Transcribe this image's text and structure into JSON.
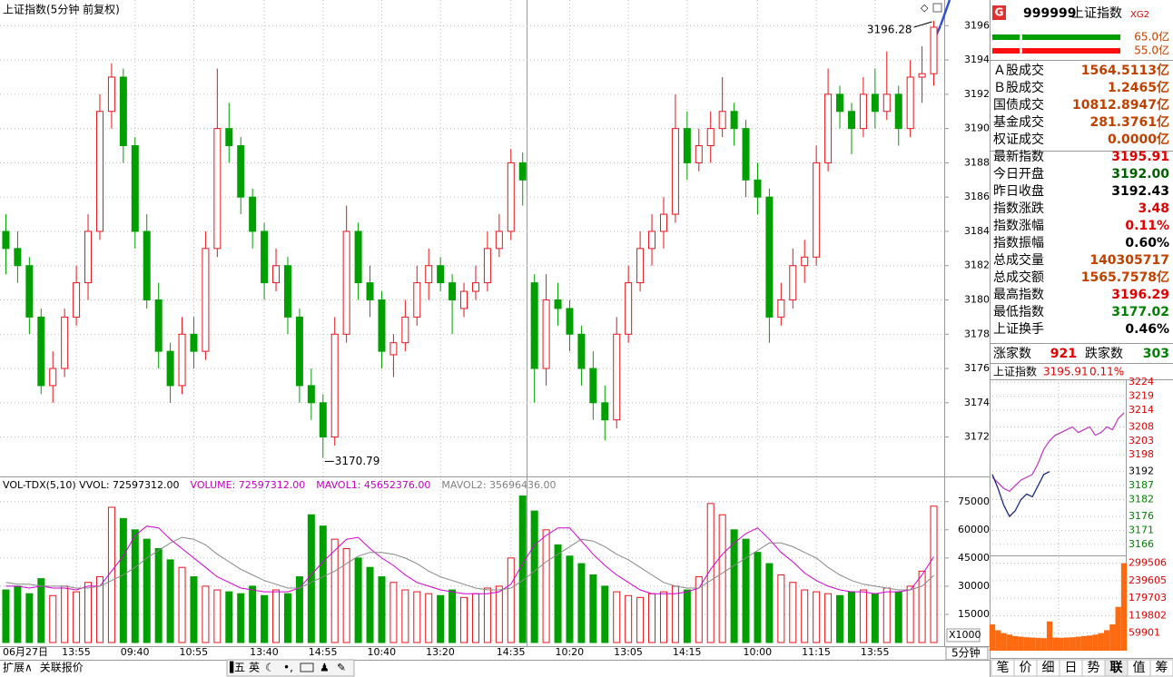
{
  "chart_data": [
    {
      "type": "candlestick",
      "title": "上证指数(5分钟 前复权)",
      "up_color": "#e8141c",
      "down_color": "#00a000",
      "ylim": [
        3169.7,
        3197.5
      ],
      "yticks": [
        3172,
        3174,
        3176,
        3178,
        3180,
        3182,
        3184,
        3186,
        3188,
        3190,
        3192,
        3194,
        3196
      ],
      "grid": true,
      "categories": [
        "06月27日",
        null,
        null,
        null,
        null,
        null,
        "13:55",
        null,
        null,
        null,
        null,
        "09:40",
        null,
        null,
        null,
        null,
        "10:55",
        null,
        null,
        null,
        null,
        null,
        "13:40",
        null,
        null,
        null,
        null,
        "14:55",
        null,
        null,
        null,
        null,
        "10:40",
        null,
        null,
        null,
        null,
        "13:20",
        null,
        null,
        null,
        null,
        null,
        "14:35",
        null,
        null,
        null,
        null,
        "10:20",
        null,
        null,
        null,
        null,
        "13:05",
        null,
        null,
        null,
        null,
        "14:15",
        null,
        null,
        null,
        null,
        null,
        "10:00",
        null,
        null,
        null,
        null,
        "11:15",
        null,
        null,
        null,
        null,
        "13:55",
        null,
        null,
        null,
        null,
        null
      ],
      "candles": [
        [
          3184,
          3185,
          3181.5,
          3183
        ],
        [
          3183,
          3184,
          3181,
          3182
        ],
        [
          3182,
          3182.5,
          3178,
          3179
        ],
        [
          3179,
          3179.5,
          3174.5,
          3175
        ],
        [
          3175,
          3177,
          3174,
          3176
        ],
        [
          3176,
          3179.5,
          3175.5,
          3179
        ],
        [
          3179,
          3182,
          3178.5,
          3181
        ],
        [
          3181,
          3185,
          3180,
          3184
        ],
        [
          3184,
          3192,
          3183.5,
          3191
        ],
        [
          3191,
          3193.8,
          3190,
          3193
        ],
        [
          3193,
          3193.5,
          3188,
          3189
        ],
        [
          3189,
          3189.5,
          3183,
          3184
        ],
        [
          3184,
          3185,
          3179.5,
          3180
        ],
        [
          3180,
          3181,
          3176,
          3177
        ],
        [
          3177,
          3177.5,
          3174,
          3175
        ],
        [
          3175,
          3179,
          3174.5,
          3178
        ],
        [
          3178,
          3179,
          3176,
          3177
        ],
        [
          3177,
          3184,
          3176.5,
          3183
        ],
        [
          3183,
          3193.5,
          3182.5,
          3190
        ],
        [
          3190,
          3191.5,
          3188,
          3189
        ],
        [
          3189,
          3189.5,
          3185,
          3186
        ],
        [
          3186,
          3186.5,
          3183,
          3184
        ],
        [
          3184,
          3184.5,
          3180,
          3181
        ],
        [
          3181,
          3183,
          3180.5,
          3182
        ],
        [
          3182,
          3182.5,
          3178,
          3179
        ],
        [
          3179,
          3179.5,
          3174,
          3175
        ],
        [
          3175,
          3176,
          3173,
          3174
        ],
        [
          3174,
          3174.5,
          3170.79,
          3172
        ],
        [
          3172,
          3179,
          3171.5,
          3178
        ],
        [
          3178,
          3185.5,
          3177.5,
          3184
        ],
        [
          3184,
          3184.5,
          3180,
          3181
        ],
        [
          3181,
          3182,
          3179,
          3180
        ],
        [
          3180,
          3180.5,
          3176,
          3177
        ],
        [
          3176.8,
          3178,
          3175.5,
          3177.5
        ],
        [
          3177.5,
          3180,
          3177,
          3179
        ],
        [
          3179,
          3182,
          3178.5,
          3181
        ],
        [
          3181,
          3183,
          3180,
          3182
        ],
        [
          3182,
          3182.5,
          3180.5,
          3181
        ],
        [
          3181,
          3181.5,
          3178,
          3180
        ],
        [
          3179.5,
          3181,
          3179,
          3180.5
        ],
        [
          3180.5,
          3182,
          3180,
          3181
        ],
        [
          3181,
          3184,
          3180.5,
          3183
        ],
        [
          3183,
          3185,
          3182.5,
          3184
        ],
        [
          3184,
          3188.8,
          3183.5,
          3188
        ],
        [
          3188,
          3188.6,
          3185.5,
          3187
        ],
        [
          3181,
          3181.5,
          3174,
          3176
        ],
        [
          3176,
          3181.5,
          3175,
          3180
        ],
        [
          3180,
          3181,
          3178.5,
          3179.5
        ],
        [
          3179.5,
          3180,
          3177,
          3178
        ],
        [
          3178,
          3178.5,
          3175,
          3176
        ],
        [
          3176,
          3177,
          3173,
          3174
        ],
        [
          3174,
          3175,
          3171.8,
          3173
        ],
        [
          3173,
          3179,
          3172.5,
          3178
        ],
        [
          3178,
          3182,
          3177.5,
          3181
        ],
        [
          3181,
          3184,
          3180.5,
          3183
        ],
        [
          3183,
          3185,
          3182,
          3184
        ],
        [
          3184,
          3186,
          3183,
          3185
        ],
        [
          3185,
          3192,
          3184.5,
          3190
        ],
        [
          3190,
          3191,
          3187,
          3188
        ],
        [
          3188,
          3190,
          3187.5,
          3189
        ],
        [
          3189,
          3191,
          3188,
          3190
        ],
        [
          3190,
          3193,
          3189.5,
          3191
        ],
        [
          3191,
          3191.5,
          3189,
          3190
        ],
        [
          3190,
          3190.5,
          3186,
          3187
        ],
        [
          3187,
          3188,
          3185,
          3186
        ],
        [
          3186,
          3186.5,
          3177.5,
          3179
        ],
        [
          3179,
          3181,
          3178.5,
          3180
        ],
        [
          3180,
          3183,
          3179.5,
          3182
        ],
        [
          3182,
          3183.5,
          3181,
          3182.5
        ],
        [
          3182.5,
          3189,
          3182,
          3188
        ],
        [
          3188,
          3193.5,
          3187.5,
          3192
        ],
        [
          3192,
          3192.5,
          3190,
          3191
        ],
        [
          3191,
          3191.5,
          3188.5,
          3190
        ],
        [
          3190,
          3193,
          3189.5,
          3192
        ],
        [
          3192,
          3193.5,
          3190,
          3191
        ],
        [
          3191,
          3194.5,
          3190.5,
          3192
        ],
        [
          3192,
          3192.5,
          3189,
          3190
        ],
        [
          3190,
          3194,
          3189.5,
          3193
        ],
        [
          3193,
          3194.8,
          3191.5,
          3193.2
        ],
        [
          3193.2,
          3196.28,
          3192.5,
          3195.91
        ]
      ]
    },
    {
      "type": "bar",
      "header": [
        {
          "text": "VOL-TDX(5,10)  VVOL: 72597312.00",
          "color": "#000000"
        },
        {
          "text": "VOLUME: 72597312.00",
          "color": "#c000c0"
        },
        {
          "text": "MAVOL1: 45652376.00",
          "color": "#c000c0"
        },
        {
          "text": "MAVOL2: 35696436.00",
          "color": "#808080"
        }
      ],
      "unit_label": "X1000",
      "ylim": [
        0,
        86000
      ],
      "yticks": [
        15000,
        30000,
        45000,
        60000,
        75000
      ],
      "values": [
        28000,
        30000,
        26000,
        34000,
        25000,
        30000,
        27000,
        32000,
        35000,
        72000,
        66000,
        60000,
        55000,
        50000,
        44000,
        40000,
        35000,
        30000,
        28000,
        27000,
        26000,
        30000,
        25000,
        28000,
        26000,
        35000,
        68000,
        62000,
        55000,
        50000,
        45000,
        40000,
        35000,
        32000,
        28000,
        27000,
        26000,
        25000,
        28000,
        24000,
        26000,
        29000,
        30000,
        45000,
        78000,
        70000,
        60000,
        52000,
        46000,
        42000,
        36000,
        30000,
        27000,
        25000,
        24000,
        26000,
        27000,
        30000,
        28000,
        35000,
        74000,
        68000,
        60000,
        55000,
        48000,
        42000,
        36000,
        32000,
        28000,
        27000,
        26000,
        25000,
        27000,
        28000,
        26000,
        29000,
        27000,
        30000,
        38000,
        72597
      ],
      "series": [
        {
          "color": "#d000d0",
          "values": [
            30000,
            30000,
            29000,
            30000,
            29000,
            29000,
            28000,
            30000,
            30000,
            38000,
            46000,
            57000,
            62000,
            61000,
            55000,
            50000,
            45000,
            40000,
            35000,
            32000,
            29000,
            28000,
            27000,
            27000,
            27000,
            29000,
            36000,
            43000,
            49000,
            55000,
            56000,
            50000,
            45000,
            41000,
            36000,
            32000,
            30000,
            28000,
            27000,
            26000,
            26000,
            26000,
            27000,
            31000,
            42000,
            52000,
            57000,
            61000,
            61000,
            54000,
            47000,
            41000,
            36000,
            32000,
            28000,
            26000,
            26000,
            26000,
            27000,
            29000,
            39000,
            47000,
            53000,
            58000,
            61000,
            55000,
            48000,
            43000,
            37000,
            33000,
            30000,
            28000,
            27000,
            27000,
            26000,
            27000,
            27000,
            28000,
            36000,
            45652
          ]
        },
        {
          "color": "#888888",
          "values": [
            32000,
            31000,
            31000,
            30000,
            30000,
            30000,
            29000,
            29000,
            30000,
            33000,
            36000,
            40000,
            45000,
            49000,
            53000,
            56000,
            55000,
            52000,
            47000,
            43000,
            39000,
            36000,
            33000,
            31000,
            29000,
            29000,
            32000,
            35000,
            38000,
            42000,
            46000,
            48000,
            48000,
            47000,
            45000,
            42000,
            38000,
            35000,
            33000,
            31000,
            29000,
            28000,
            28000,
            29000,
            33000,
            38000,
            43000,
            47000,
            51000,
            55000,
            54000,
            51000,
            47000,
            44000,
            40000,
            36000,
            32000,
            30000,
            29000,
            29000,
            33000,
            37000,
            41000,
            45000,
            49000,
            53000,
            53000,
            51000,
            48000,
            45000,
            40000,
            36000,
            33000,
            31000,
            30000,
            29000,
            28000,
            28000,
            30000,
            35696
          ]
        }
      ]
    },
    {
      "type": "line",
      "title": "上证指数",
      "last": "3195.91",
      "change": "0.11%",
      "base": 3192.43,
      "ylim": [
        3164,
        3225
      ],
      "yticks": [
        3224,
        3219,
        3214,
        3208,
        3203,
        3198,
        3192,
        3187,
        3182,
        3176,
        3171,
        3166
      ],
      "series": [
        {
          "color": "#c040c0",
          "values": [
            3190,
            3188,
            3186,
            3185,
            3187,
            3189,
            3190,
            3191,
            3195,
            3200,
            3203,
            3205,
            3206,
            3207,
            3208,
            3206,
            3207,
            3208,
            3205,
            3206,
            3208,
            3207,
            3211,
            3213
          ]
        },
        {
          "color": "#1a2a80",
          "values": [
            3191,
            3186,
            3180,
            3176,
            3178,
            3182,
            3184,
            3183,
            3187,
            3191,
            3192,
            null,
            null,
            null,
            null,
            null,
            null,
            null,
            null,
            null,
            null,
            null,
            null,
            null
          ]
        }
      ],
      "volume_color": "#ff6a10",
      "volume_ylim": [
        0,
        320000
      ],
      "volume_yticks": [
        299506,
        239605,
        179703,
        119802,
        59901
      ],
      "volume": [
        90000,
        70000,
        60000,
        55000,
        50000,
        48000,
        46000,
        45000,
        44000,
        43000,
        100000,
        45000,
        44000,
        45000,
        46000,
        48000,
        50000,
        52000,
        55000,
        60000,
        70000,
        90000,
        150000,
        299506
      ]
    }
  ],
  "quote": {
    "icon": "G",
    "code": "999999",
    "name": "上证指数",
    "tag": "XG2",
    "bar_labels": [
      "65.0亿",
      "55.0亿"
    ],
    "rows": [
      {
        "label": "Ａ股成交",
        "value": "1564.5113亿",
        "color": "#c04000"
      },
      {
        "label": "Ｂ股成交",
        "value": "1.2465亿",
        "color": "#c04000"
      },
      {
        "label": "国债成交",
        "value": "10812.8947亿",
        "color": "#c04000"
      },
      {
        "label": "基金成交",
        "value": "281.3761亿",
        "color": "#c04000"
      },
      {
        "label": "权证成交",
        "value": "0.0000亿",
        "color": "#c04000"
      },
      {
        "label": "最新指数",
        "value": "3195.91",
        "color": "#e00000"
      },
      {
        "label": "今日开盘",
        "value": "3192.00",
        "color": "#006000"
      },
      {
        "label": "昨日收盘",
        "value": "3192.43",
        "color": "#000000"
      },
      {
        "label": "指数涨跌",
        "value": "3.48",
        "color": "#e00000"
      },
      {
        "label": "指数涨幅",
        "value": "0.11%",
        "color": "#e00000"
      },
      {
        "label": "指数振幅",
        "value": "0.60%",
        "color": "#000000"
      },
      {
        "label": "总成交量",
        "value": "140305717",
        "color": "#c04000"
      },
      {
        "label": "总成交额",
        "value": "1565.7578亿",
        "color": "#c04000"
      },
      {
        "label": "最高指数",
        "value": "3196.29",
        "color": "#e00000"
      },
      {
        "label": "最低指数",
        "value": "3177.02",
        "color": "#008000"
      },
      {
        "label": "上证换手",
        "value": "0.46%",
        "color": "#000000"
      }
    ],
    "up_label": "涨家数",
    "up": "921",
    "down_label": "跌家数",
    "down": "303"
  },
  "toolbar": {
    "left": [
      "扩展∧",
      "关联报价"
    ],
    "ime": [
      "五",
      "英"
    ],
    "period": "5分钟",
    "tabs": [
      "笔",
      "价",
      "细",
      "日",
      "势",
      "联",
      "值",
      "筹"
    ]
  }
}
